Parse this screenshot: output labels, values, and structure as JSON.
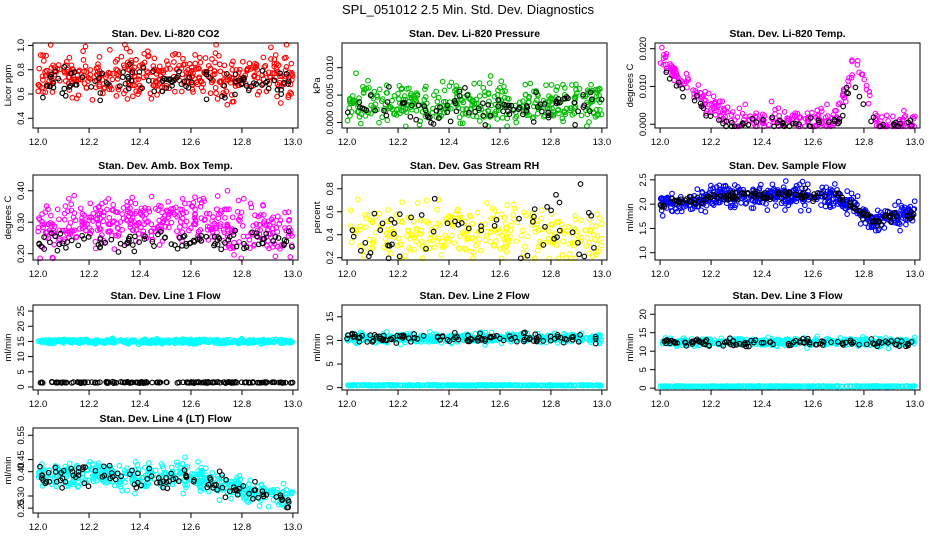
{
  "page_title": "SPL_051012  2.5 Min. Std. Dev. Diagnostics",
  "colors": {
    "red": "#ff0000",
    "green": "#00bb00",
    "magenta": "#ff00ff",
    "yellow": "#ffff00",
    "blue": "#0000ff",
    "cyan": "#00ffff",
    "black": "#000000"
  },
  "chart_data": [
    {
      "type": "scatter",
      "title": "Stan. Dev. Li-820 CO2",
      "ylabel": "Licor ppm",
      "xlim": [
        11.98,
        13.02
      ],
      "ylim": [
        0.32,
        1.02
      ],
      "xticks": [
        "12.0",
        "12.2",
        "12.4",
        "12.6",
        "12.8",
        "13.0"
      ],
      "yticks": [
        "0.4",
        "0.6",
        "0.8",
        "1.0"
      ],
      "series": [
        {
          "name": "primary",
          "color": "#ff0000",
          "profile": [
            [
              12.0,
              0.75
            ],
            [
              13.0,
              0.75
            ]
          ],
          "spread": 0.09,
          "count": 420
        },
        {
          "name": "secondary",
          "color": "#000000",
          "profile": [
            [
              12.0,
              0.7
            ],
            [
              13.0,
              0.7
            ]
          ],
          "spread": 0.07,
          "count": 100
        }
      ]
    },
    {
      "type": "scatter",
      "title": "Stan. Dev. Li-820 Pressure",
      "ylabel": "kPa",
      "xlim": [
        11.98,
        13.02
      ],
      "ylim": [
        -0.001,
        0.0145
      ],
      "xticks": [
        "12.0",
        "12.2",
        "12.4",
        "12.6",
        "12.8",
        "13.0"
      ],
      "yticks": [
        "0.000",
        "0.005",
        "0.010"
      ],
      "series": [
        {
          "name": "primary",
          "color": "#00bb00",
          "profile": [
            [
              12.0,
              0.0035
            ],
            [
              13.0,
              0.0035
            ]
          ],
          "spread": 0.002,
          "count": 380
        },
        {
          "name": "secondary",
          "color": "#000000",
          "profile": [
            [
              12.0,
              0.0025
            ],
            [
              13.0,
              0.0025
            ]
          ],
          "spread": 0.0015,
          "count": 90
        }
      ]
    },
    {
      "type": "scatter",
      "title": "Stan. Dev. Li-820 Temp.",
      "ylabel": "degrees C",
      "xlim": [
        11.98,
        13.02
      ],
      "ylim": [
        -0.001,
        0.0215
      ],
      "xticks": [
        "12.0",
        "12.2",
        "12.4",
        "12.6",
        "12.8",
        "13.0"
      ],
      "yticks": [
        "0.000",
        "0.010",
        "0.020"
      ],
      "series": [
        {
          "name": "primary",
          "color": "#ff00ff",
          "profile": [
            [
              12.0,
              0.018
            ],
            [
              12.08,
              0.012
            ],
            [
              12.2,
              0.005
            ],
            [
              12.3,
              0.0012
            ],
            [
              12.68,
              0.0012
            ],
            [
              12.72,
              0.007
            ],
            [
              12.77,
              0.018
            ],
            [
              12.82,
              0.007
            ],
            [
              12.86,
              0.0
            ],
            [
              13.0,
              0.0
            ]
          ],
          "spread": 0.0015,
          "count": 300
        },
        {
          "name": "secondary",
          "color": "#000000",
          "profile": [
            [
              12.0,
              0.015
            ],
            [
              12.1,
              0.008
            ],
            [
              12.2,
              0.003
            ],
            [
              12.25,
              0.0
            ],
            [
              12.7,
              0.0
            ],
            [
              12.75,
              0.012
            ],
            [
              12.8,
              0.005
            ],
            [
              12.86,
              0.0
            ],
            [
              13.0,
              0.0
            ]
          ],
          "spread": 0.0008,
          "count": 70
        }
      ]
    },
    {
      "type": "scatter",
      "title": "Stan. Dev. Amb. Box Temp.",
      "ylabel": "degrees C",
      "xlim": [
        11.98,
        13.02
      ],
      "ylim": [
        0.18,
        0.45
      ],
      "xticks": [
        "12.0",
        "12.2",
        "12.4",
        "12.6",
        "12.8",
        "13.0"
      ],
      "yticks": [
        "0.20",
        "0.30",
        "0.40"
      ],
      "series": [
        {
          "name": "primary",
          "color": "#ff00ff",
          "profile": [
            [
              12.0,
              0.28
            ],
            [
              12.5,
              0.31
            ],
            [
              13.0,
              0.27
            ]
          ],
          "spread": 0.04,
          "count": 420
        },
        {
          "name": "secondary",
          "color": "#000000",
          "profile": [
            [
              12.0,
              0.24
            ],
            [
              13.0,
              0.24
            ]
          ],
          "spread": 0.015,
          "count": 100
        }
      ]
    },
    {
      "type": "scatter",
      "title": "Stan. Dev. Gas Stream RH",
      "ylabel": "percent",
      "xlim": [
        11.98,
        13.02
      ],
      "ylim": [
        0.18,
        0.92
      ],
      "xticks": [
        "12.0",
        "12.2",
        "12.4",
        "12.6",
        "12.8",
        "13.0"
      ],
      "yticks": [
        "0.2",
        "0.4",
        "0.6",
        "0.8"
      ],
      "series": [
        {
          "name": "primary",
          "color": "#ffff00",
          "profile": [
            [
              12.0,
              0.42
            ],
            [
              13.0,
              0.4
            ]
          ],
          "spread": 0.12,
          "count": 300
        },
        {
          "name": "secondary",
          "color": "#000000",
          "profile": [
            [
              12.0,
              0.4
            ],
            [
              13.0,
              0.4
            ]
          ],
          "spread": 0.15,
          "count": 55
        }
      ]
    },
    {
      "type": "scatter",
      "title": "Stan. Dev. Sample Flow",
      "ylabel": "ml/min",
      "xlim": [
        11.98,
        13.02
      ],
      "ylim": [
        0.85,
        2.6
      ],
      "xticks": [
        "12.0",
        "12.2",
        "12.4",
        "12.6",
        "12.8",
        "13.0"
      ],
      "yticks": [
        "1.0",
        "1.5",
        "2.0",
        "2.5"
      ],
      "series": [
        {
          "name": "primary",
          "color": "#0000ff",
          "profile": [
            [
              12.0,
              2.0
            ],
            [
              12.1,
              2.0
            ],
            [
              12.2,
              2.15
            ],
            [
              12.5,
              2.2
            ],
            [
              12.7,
              2.15
            ],
            [
              12.78,
              1.9
            ],
            [
              12.84,
              1.6
            ],
            [
              12.9,
              1.75
            ],
            [
              13.0,
              1.8
            ]
          ],
          "spread": 0.12,
          "count": 520
        },
        {
          "name": "secondary",
          "color": "#000000",
          "profile": [
            [
              12.0,
              2.0
            ],
            [
              12.2,
              2.15
            ],
            [
              12.5,
              2.2
            ],
            [
              12.7,
              2.15
            ],
            [
              12.8,
              1.8
            ],
            [
              12.85,
              1.6
            ],
            [
              12.9,
              1.75
            ],
            [
              13.0,
              1.8
            ]
          ],
          "spread": 0.05,
          "count": 140
        }
      ]
    },
    {
      "type": "scatter",
      "title": "Stan. Dev. Line 1 Flow",
      "ylabel": "ml/min",
      "xlim": [
        11.98,
        13.02
      ],
      "ylim": [
        -1,
        27
      ],
      "xticks": [
        "12.0",
        "12.2",
        "12.4",
        "12.6",
        "12.8",
        "13.0"
      ],
      "yticks": [
        "0",
        "5",
        "10",
        "15",
        "20",
        "25"
      ],
      "series": [
        {
          "name": "primary",
          "color": "#00ffff",
          "profile": [
            [
              12.0,
              15.0
            ],
            [
              13.0,
              15.0
            ]
          ],
          "spread": 0.35,
          "count": 450
        },
        {
          "name": "secondary",
          "color": "#000000",
          "profile": [
            [
              12.0,
              1.5
            ],
            [
              13.0,
              1.5
            ]
          ],
          "spread": 0.1,
          "count": 160
        }
      ]
    },
    {
      "type": "scatter",
      "title": "Stan. Dev. Line 2 Flow",
      "ylabel": "ml/min",
      "xlim": [
        11.98,
        13.02
      ],
      "ylim": [
        -0.5,
        17.5
      ],
      "xticks": [
        "12.0",
        "12.2",
        "12.4",
        "12.6",
        "12.8",
        "13.0"
      ],
      "yticks": [
        "0",
        "5",
        "10",
        "15"
      ],
      "series": [
        {
          "name": "primary",
          "color": "#00ffff",
          "profile": [
            [
              12.0,
              10.5
            ],
            [
              13.0,
              10.5
            ]
          ],
          "spread": 0.45,
          "count": 420
        },
        {
          "name": "baseline",
          "color": "#00ffff",
          "profile": [
            [
              12.0,
              0.5
            ],
            [
              13.0,
              0.5
            ]
          ],
          "spread": 0.05,
          "count": 300
        },
        {
          "name": "secondary",
          "color": "#000000",
          "profile": [
            [
              12.0,
              10.5
            ],
            [
              13.0,
              10.5
            ]
          ],
          "spread": 0.5,
          "count": 110
        }
      ]
    },
    {
      "type": "scatter",
      "title": "Stan. Dev. Line 3 Flow",
      "ylabel": "ml/min",
      "xlim": [
        11.98,
        13.02
      ],
      "ylim": [
        -0.5,
        22.5
      ],
      "xticks": [
        "12.0",
        "12.2",
        "12.4",
        "12.6",
        "12.8",
        "13.0"
      ],
      "yticks": [
        "0",
        "5",
        "10",
        "15",
        "20"
      ],
      "series": [
        {
          "name": "primary",
          "color": "#00ffff",
          "profile": [
            [
              12.0,
              12.5
            ],
            [
              13.0,
              12.5
            ]
          ],
          "spread": 0.5,
          "count": 420
        },
        {
          "name": "baseline",
          "color": "#00ffff",
          "profile": [
            [
              12.0,
              0.5
            ],
            [
              13.0,
              0.5
            ]
          ],
          "spread": 0.05,
          "count": 300
        },
        {
          "name": "secondary",
          "color": "#000000",
          "profile": [
            [
              12.0,
              12.3
            ],
            [
              13.0,
              12.3
            ]
          ],
          "spread": 0.5,
          "count": 110
        }
      ]
    },
    {
      "type": "scatter",
      "title": "Stan. Dev. Line 4 (LT) Flow",
      "ylabel": "ml/min",
      "xlim": [
        11.98,
        13.02
      ],
      "ylim": [
        0.23,
        0.58
      ],
      "xticks": [
        "12.0",
        "12.2",
        "12.4",
        "12.6",
        "12.8",
        "13.0"
      ],
      "yticks": [
        "0.25",
        "0.30",
        "0.40",
        "0.45",
        "0.55"
      ],
      "series": [
        {
          "name": "primary",
          "color": "#00ffff",
          "profile": [
            [
              12.0,
              0.39
            ],
            [
              12.6,
              0.38
            ],
            [
              12.75,
              0.34
            ],
            [
              13.0,
              0.28
            ]
          ],
          "spread": 0.025,
          "count": 420
        },
        {
          "name": "secondary",
          "color": "#000000",
          "profile": [
            [
              12.0,
              0.38
            ],
            [
              12.6,
              0.38
            ],
            [
              12.75,
              0.34
            ],
            [
              13.0,
              0.28
            ]
          ],
          "spread": 0.025,
          "count": 110
        }
      ]
    }
  ]
}
